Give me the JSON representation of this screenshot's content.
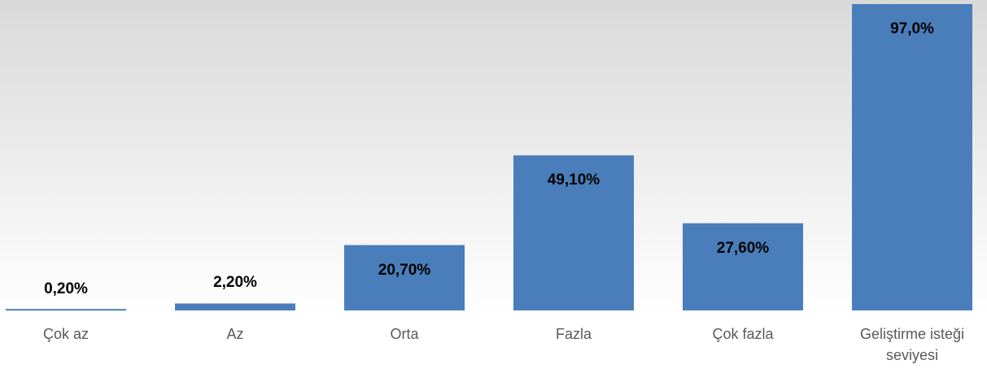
{
  "chart_data": {
    "type": "bar",
    "categories": [
      "Çok az",
      "Az",
      "Orta",
      "Fazla",
      "Çok fazla",
      "Geliştirme isteği seviyesi"
    ],
    "values": [
      0.2,
      2.2,
      20.7,
      49.1,
      27.6,
      97.0
    ],
    "value_labels": [
      "0,20%",
      "2,20%",
      "20,70%",
      "49,10%",
      "27,60%",
      "97,0%"
    ],
    "color": "#4a7ebb",
    "ylim": [
      0,
      97
    ]
  }
}
